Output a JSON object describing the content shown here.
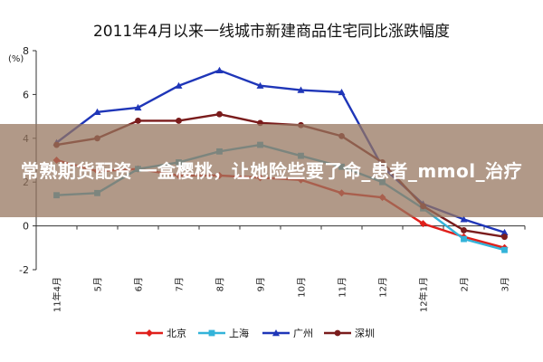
{
  "chart_data": {
    "type": "line",
    "title": "2011年4月以来一线城市新建商品住宅同比涨跌幅度",
    "ylabel": "(%)",
    "xlabel": "",
    "ylim": [
      -2,
      8
    ],
    "yticks": [
      -2,
      0,
      2,
      4,
      6,
      8
    ],
    "categories": [
      "11年4月",
      "5月",
      "6月",
      "7月",
      "8月",
      "9月",
      "10月",
      "11月",
      "12月",
      "12年1月",
      "2月",
      "3月"
    ],
    "grid": false,
    "legend_position": "bottom",
    "series": [
      {
        "name": "北京",
        "color": "#e0201b",
        "marker": "diamond",
        "values": [
          3.0,
          2.5,
          2.6,
          2.3,
          2.3,
          2.2,
          2.1,
          1.5,
          1.3,
          0.1,
          -0.5,
          -1.0
        ]
      },
      {
        "name": "上海",
        "color": "#33b3d9",
        "marker": "square",
        "values": [
          1.4,
          1.5,
          2.6,
          2.9,
          3.4,
          3.7,
          3.2,
          2.7,
          2.0,
          0.8,
          -0.6,
          -1.1
        ]
      },
      {
        "name": "广州",
        "color": "#1f36b8",
        "marker": "triangle",
        "values": [
          3.8,
          5.2,
          5.4,
          6.4,
          7.1,
          6.4,
          6.2,
          6.1,
          2.7,
          1.0,
          0.3,
          -0.3
        ]
      },
      {
        "name": "深圳",
        "color": "#7a1c1c",
        "marker": "circle",
        "values": [
          3.7,
          4.0,
          4.8,
          4.8,
          5.1,
          4.7,
          4.6,
          4.1,
          2.9,
          0.9,
          -0.2,
          -0.5
        ]
      }
    ]
  },
  "overlay": {
    "text": "常熟期货配资 一盒樱桃，让她险些要了命_患者_mmol_治疗"
  }
}
